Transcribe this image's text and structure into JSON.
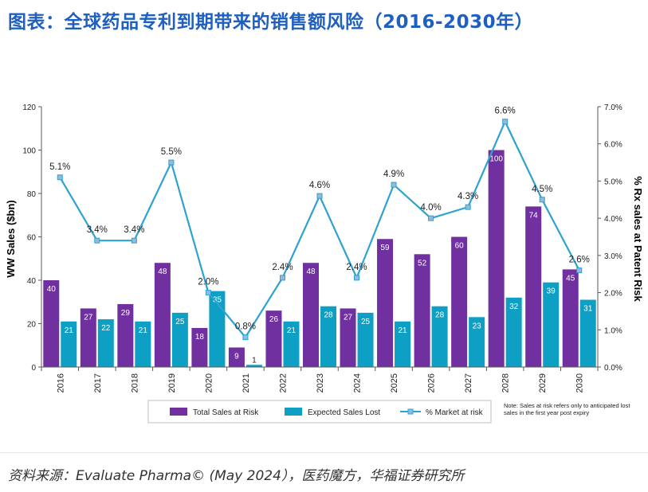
{
  "page_title": "图表：全球药品专利到期带来的销售额风险（2016-2030年）",
  "source": "资料来源：Evaluate Pharma© (May 2024），医药魔方，华福证券研究所",
  "colors": {
    "title": "#1F5FBF",
    "total": "#7030A0",
    "expected": "#0E9FC4",
    "line": "#2EA2D0",
    "marker_fill": "#8FBCDC",
    "axis": "#595959"
  },
  "chart_data": {
    "type": "bar",
    "categories": [
      "2016",
      "2017",
      "2018",
      "2019",
      "2020",
      "2021",
      "2022",
      "2023",
      "2024",
      "2025",
      "2026",
      "2027",
      "2028",
      "2029",
      "2030"
    ],
    "series": [
      {
        "name": "Total Sales at Risk",
        "type": "bar",
        "values": [
          40,
          27,
          29,
          48,
          18,
          9,
          26,
          48,
          27,
          59,
          52,
          60,
          100,
          74,
          45
        ]
      },
      {
        "name": "Expected Sales Lost",
        "type": "bar",
        "values": [
          21,
          22,
          21,
          25,
          35,
          1,
          21,
          28,
          25,
          21,
          28,
          23,
          32,
          39,
          31
        ]
      },
      {
        "name": "% Market at risk",
        "type": "line",
        "axis": "right",
        "values": [
          5.1,
          3.4,
          3.4,
          5.5,
          2.0,
          0.8,
          2.4,
          4.6,
          2.4,
          4.9,
          4.0,
          4.3,
          6.6,
          4.5,
          2.6
        ],
        "labels": [
          "5.1%",
          "3.4%",
          "3.4%",
          "5.5%",
          "2.0%",
          "0.8%",
          "2.4%",
          "4.6%",
          "2.4%",
          "4.9%",
          "4.0%",
          "4.3%",
          "6.6%",
          "4.5%",
          "2.6%"
        ]
      }
    ],
    "ylabel": "WW Sales ($bn)",
    "y2label": "% Rx sales at Patent Risk",
    "ylim": [
      0,
      120
    ],
    "yticks": [
      "0",
      "20",
      "40",
      "60",
      "80",
      "100",
      "120"
    ],
    "y2lim": [
      0,
      7
    ],
    "y2ticks": [
      "0.0%",
      "1.0%",
      "2.0%",
      "3.0%",
      "4.0%",
      "5.0%",
      "6.0%",
      "7.0%"
    ],
    "legend": [
      "Total Sales at Risk",
      "Expected Sales Lost",
      "% Market at risk"
    ],
    "legend_position": "bottom",
    "note": "Note: Sales at risk refers only to anticipated lost sales in the first year post expiry",
    "grid": false
  }
}
